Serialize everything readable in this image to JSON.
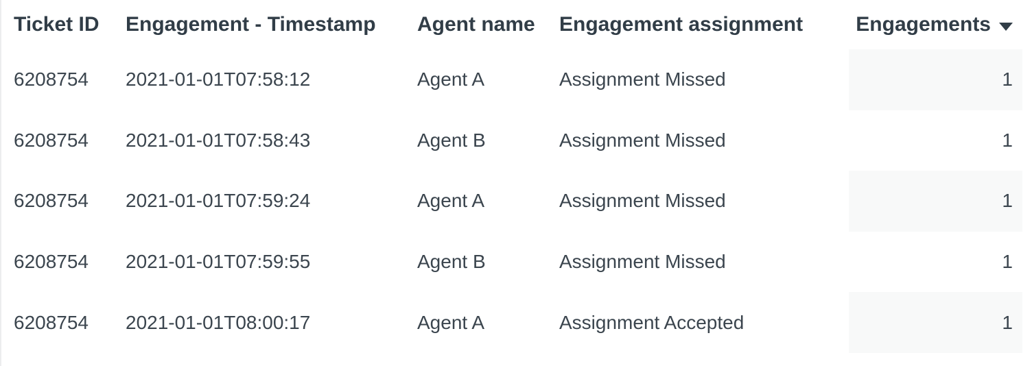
{
  "table": {
    "columns": [
      {
        "id": "ticket-id",
        "label": "Ticket ID",
        "align": "left"
      },
      {
        "id": "engagement-timestamp",
        "label": "Engagement - Timestamp",
        "align": "left"
      },
      {
        "id": "agent-name",
        "label": "Agent name",
        "align": "left"
      },
      {
        "id": "engagement-assignment",
        "label": "Engagement assignment",
        "align": "left"
      },
      {
        "id": "engagements",
        "label": "Engagements",
        "align": "right",
        "sort": "descending"
      }
    ],
    "rows": [
      [
        "6208754",
        "2021-01-01T07:58:12",
        "Agent A",
        "Assignment Missed",
        "1"
      ],
      [
        "6208754",
        "2021-01-01T07:58:43",
        "Agent B",
        "Assignment Missed",
        "1"
      ],
      [
        "6208754",
        "2021-01-01T07:59:24",
        "Agent A",
        "Assignment Missed",
        "1"
      ],
      [
        "6208754",
        "2021-01-01T07:59:55",
        "Agent B",
        "Assignment Missed",
        "1"
      ],
      [
        "6208754",
        "2021-01-01T08:00:17",
        "Agent A",
        "Assignment Accepted",
        "1"
      ]
    ]
  },
  "sort": {
    "column": "Engagements",
    "direction": "descending",
    "icon": "caret-down"
  },
  "colors": {
    "background": "#ffffff",
    "header_text": "#313d47",
    "body_text": "#3b454e",
    "metric_shade": "#f8f9f9",
    "left_edge_line": "#ecedee"
  }
}
